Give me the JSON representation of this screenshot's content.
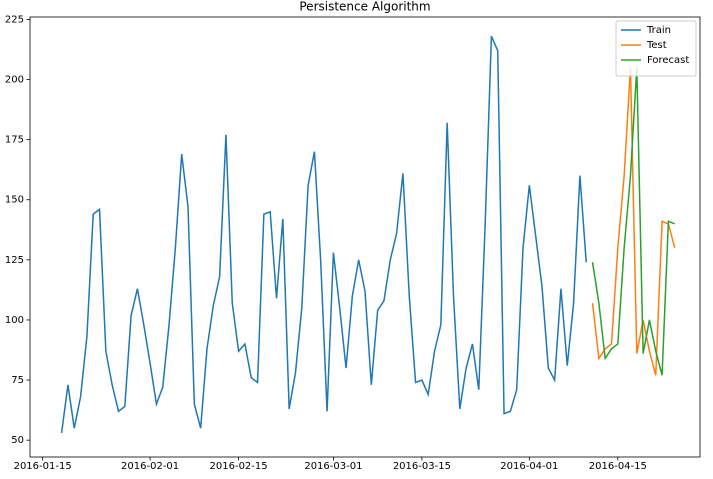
{
  "chart_data": {
    "type": "line",
    "title": "Persistence Algorithm",
    "xlim": [
      "2016-01-13",
      "2016-04-28"
    ],
    "ylim": [
      43,
      226
    ],
    "xticks": [
      "2016-01-15",
      "2016-02-01",
      "2016-02-15",
      "2016-03-01",
      "2016-03-15",
      "2016-04-01",
      "2016-04-15"
    ],
    "yticks": [
      50,
      75,
      100,
      125,
      150,
      175,
      200,
      225
    ],
    "legend": "upper right",
    "series": [
      {
        "name": "Train",
        "color": "#1f77b4",
        "x": [
          "2016-01-18",
          "2016-01-19",
          "2016-01-20",
          "2016-01-21",
          "2016-01-22",
          "2016-01-23",
          "2016-01-24",
          "2016-01-25",
          "2016-01-26",
          "2016-01-27",
          "2016-01-28",
          "2016-01-29",
          "2016-01-30",
          "2016-01-31",
          "2016-02-01",
          "2016-02-02",
          "2016-02-03",
          "2016-02-04",
          "2016-02-05",
          "2016-02-06",
          "2016-02-07",
          "2016-02-08",
          "2016-02-09",
          "2016-02-10",
          "2016-02-11",
          "2016-02-12",
          "2016-02-13",
          "2016-02-14",
          "2016-02-15",
          "2016-02-16",
          "2016-02-17",
          "2016-02-18",
          "2016-02-19",
          "2016-02-20",
          "2016-02-21",
          "2016-02-22",
          "2016-02-23",
          "2016-02-24",
          "2016-02-25",
          "2016-02-26",
          "2016-02-27",
          "2016-02-28",
          "2016-02-29",
          "2016-03-01",
          "2016-03-02",
          "2016-03-03",
          "2016-03-04",
          "2016-03-05",
          "2016-03-06",
          "2016-03-07",
          "2016-03-08",
          "2016-03-09",
          "2016-03-10",
          "2016-03-11",
          "2016-03-12",
          "2016-03-13",
          "2016-03-14",
          "2016-03-15",
          "2016-03-16",
          "2016-03-17",
          "2016-03-18",
          "2016-03-19",
          "2016-03-20",
          "2016-03-21",
          "2016-03-22",
          "2016-03-23",
          "2016-03-24",
          "2016-03-25",
          "2016-03-26",
          "2016-03-27",
          "2016-03-28",
          "2016-03-29",
          "2016-03-30",
          "2016-03-31",
          "2016-04-01",
          "2016-04-02",
          "2016-04-03",
          "2016-04-04",
          "2016-04-05",
          "2016-04-06",
          "2016-04-07",
          "2016-04-08",
          "2016-04-09",
          "2016-04-10"
        ],
        "values": [
          53,
          73,
          55,
          68,
          93,
          144,
          146,
          87,
          73,
          62,
          64,
          102,
          113,
          98,
          82,
          65,
          72,
          98,
          130,
          169,
          147,
          65,
          55,
          88,
          106,
          118,
          177,
          107,
          87,
          90,
          76,
          74,
          144,
          145,
          109,
          142,
          63,
          78,
          105,
          156,
          170,
          124,
          62,
          128,
          105,
          80,
          110,
          125,
          112,
          73,
          104,
          108,
          125,
          136,
          161,
          110,
          74,
          75,
          69,
          87,
          98,
          182,
          110,
          63,
          80,
          90,
          71,
          139,
          218,
          212,
          61,
          62,
          71,
          130,
          156,
          135,
          114,
          80,
          75,
          113,
          81,
          107,
          160,
          124
        ]
      },
      {
        "name": "Test",
        "color": "#ff7f0e",
        "x": [
          "2016-04-11",
          "2016-04-12",
          "2016-04-13",
          "2016-04-14",
          "2016-04-15",
          "2016-04-16",
          "2016-04-17",
          "2016-04-18",
          "2016-04-19",
          "2016-04-20",
          "2016-04-21",
          "2016-04-22",
          "2016-04-23",
          "2016-04-24"
        ],
        "values": [
          107,
          84,
          88,
          90,
          130,
          160,
          205,
          86,
          100,
          87,
          77,
          141,
          140,
          130
        ]
      },
      {
        "name": "Forecast",
        "color": "#2ca02c",
        "x": [
          "2016-04-11",
          "2016-04-12",
          "2016-04-13",
          "2016-04-14",
          "2016-04-15",
          "2016-04-16",
          "2016-04-17",
          "2016-04-18",
          "2016-04-19",
          "2016-04-20",
          "2016-04-21",
          "2016-04-22",
          "2016-04-23",
          "2016-04-24"
        ],
        "values": [
          124,
          107,
          84,
          88,
          90,
          130,
          160,
          205,
          86,
          100,
          87,
          77,
          141,
          140
        ]
      }
    ]
  }
}
